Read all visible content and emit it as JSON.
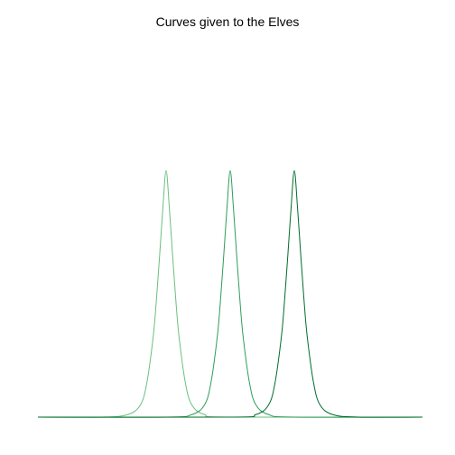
{
  "chart_data": {
    "type": "line",
    "title": "Curves given to the Elves",
    "xlabel": "",
    "ylabel": "",
    "axes_visible": false,
    "grid": false,
    "legend": "none",
    "xlim": [
      0,
      6
    ],
    "ylim": [
      0,
      1
    ],
    "series": [
      {
        "color": "#6bbf80",
        "x": [
          0,
          1.0,
          1.4,
          1.6,
          1.7,
          1.8,
          1.85,
          1.9,
          1.95,
          2.0,
          2.05,
          2.1,
          2.15,
          2.2,
          2.3,
          2.4,
          2.6,
          3.0,
          6
        ],
        "y": [
          0,
          0.0,
          0.01,
          0.05,
          0.14,
          0.33,
          0.48,
          0.66,
          0.85,
          1.0,
          0.85,
          0.66,
          0.48,
          0.33,
          0.14,
          0.05,
          0.01,
          0.0,
          0
        ]
      },
      {
        "color": "#2e9d5b",
        "x": [
          0,
          2.0,
          2.4,
          2.6,
          2.7,
          2.8,
          2.85,
          2.9,
          2.95,
          3.0,
          3.05,
          3.1,
          3.15,
          3.2,
          3.3,
          3.4,
          3.6,
          4.0,
          6
        ],
        "y": [
          0,
          0.0,
          0.01,
          0.05,
          0.14,
          0.33,
          0.48,
          0.66,
          0.85,
          1.0,
          0.85,
          0.66,
          0.48,
          0.33,
          0.14,
          0.05,
          0.01,
          0.0,
          0
        ]
      },
      {
        "color": "#006d2c",
        "x": [
          0,
          3.0,
          3.4,
          3.6,
          3.7,
          3.8,
          3.85,
          3.9,
          3.95,
          4.0,
          4.05,
          4.1,
          4.15,
          4.2,
          4.3,
          4.4,
          4.6,
          5.0,
          6
        ],
        "y": [
          0,
          0.0,
          0.01,
          0.05,
          0.14,
          0.33,
          0.48,
          0.66,
          0.85,
          1.0,
          0.85,
          0.66,
          0.48,
          0.33,
          0.14,
          0.05,
          0.01,
          0.0,
          0
        ]
      }
    ]
  }
}
